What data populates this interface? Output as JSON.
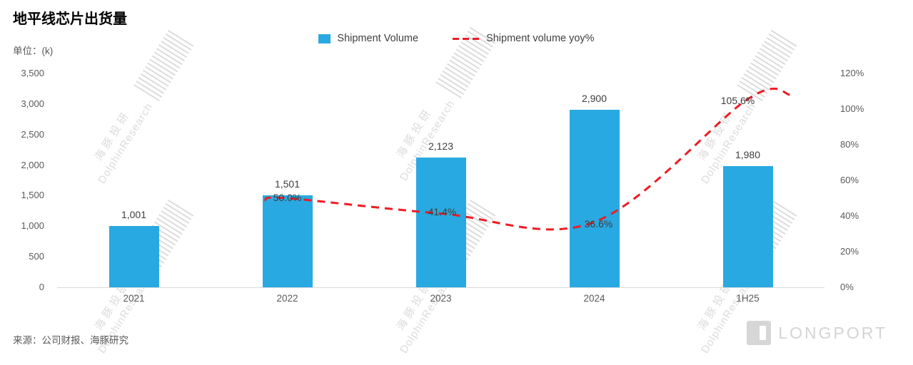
{
  "header": {
    "title": "地平线芯片出货量",
    "unit": "单位：(k)"
  },
  "legend": {
    "items": [
      {
        "label": "Shipment Volume",
        "marker": "bar-swatch",
        "color": "#29a9e1"
      },
      {
        "label": "Shipment volume yoy%",
        "marker": "dashed-line-swatch",
        "color": "#ed1c24"
      }
    ]
  },
  "chart_data": {
    "type": "bar",
    "title": "地平线芯片出货量",
    "unit": "单位：(k)",
    "categories": [
      "2021",
      "2022",
      "2023",
      "2024",
      "1H25"
    ],
    "series": [
      {
        "name": "Shipment Volume",
        "type": "bar",
        "color": "#29a9e1",
        "values": [
          1001,
          1501,
          2123,
          2900,
          1980
        ],
        "value_labels": [
          "1,001",
          "1,501",
          "2,123",
          "2,900",
          "1,980"
        ]
      },
      {
        "name": "Shipment volume yoy%",
        "type": "line",
        "style": "dashed",
        "color": "#ed1c24",
        "values": [
          null,
          50.0,
          41.4,
          36.6,
          105.6
        ],
        "value_labels": [
          null,
          "50.0%",
          "41.4%",
          "36.6%",
          "105.6%"
        ]
      }
    ],
    "left_axis": {
      "min": 0,
      "max": 3500,
      "ticks": [
        0,
        500,
        1000,
        1500,
        2000,
        2500,
        3000,
        3500
      ],
      "tick_labels": [
        "0",
        "500",
        "1,000",
        "1,500",
        "2,000",
        "2,500",
        "3,000",
        "3,500"
      ]
    },
    "right_axis": {
      "min": 0,
      "max": 120,
      "ticks": [
        0,
        20,
        40,
        60,
        80,
        100,
        120
      ],
      "tick_labels": [
        "0%",
        "20%",
        "40%",
        "60%",
        "80%",
        "100%",
        "120%"
      ]
    },
    "grid": false,
    "legend_position": "top-center"
  },
  "watermark": {
    "cn": "海豚投研",
    "en": "DolphinResearch"
  },
  "footer": {
    "source": "来源：公司财报、海豚研究",
    "brand": "LONGPORT"
  }
}
